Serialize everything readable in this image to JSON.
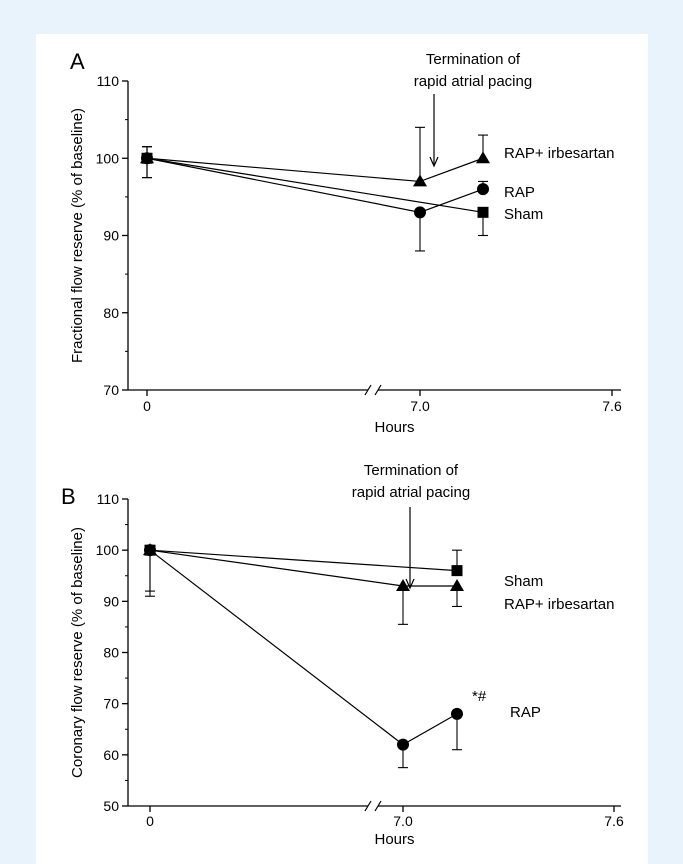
{
  "chart_data": [
    {
      "panel_label": "A",
      "type": "line",
      "ylabel": "Fractional flow reserve (% of baseline)",
      "xlabel": "Hours",
      "ylim": [
        70,
        110
      ],
      "yticks": [
        70,
        80,
        90,
        100,
        110
      ],
      "xticks": [
        "0",
        "7.0",
        "7.6"
      ],
      "x_points": [
        "0",
        "7.0",
        "7.3"
      ],
      "axis_break": true,
      "annotation": {
        "line1": "Termination of",
        "line2": "rapid atrial pacing"
      },
      "series": [
        {
          "name": "RAP+ irbesartan",
          "marker": "triangle",
          "values": [
            100,
            97,
            100
          ],
          "err_up": [
            1.5,
            7,
            3
          ],
          "err_down": [
            2.5,
            0,
            0
          ]
        },
        {
          "name": "RAP",
          "marker": "circle",
          "values": [
            100,
            93,
            96
          ],
          "err_up": [
            1.5,
            0,
            1
          ],
          "err_down": [
            2.5,
            5,
            0
          ]
        },
        {
          "name": "Sham",
          "marker": "square",
          "values": [
            100,
            null,
            93
          ],
          "err_up": [
            1.5,
            0,
            0
          ],
          "err_down": [
            2.5,
            0,
            3
          ]
        }
      ]
    },
    {
      "panel_label": "B",
      "type": "line",
      "ylabel": "Coronary flow reserve (% of baseline)",
      "xlabel": "Hours",
      "ylim": [
        50,
        110
      ],
      "yticks": [
        50,
        60,
        70,
        80,
        90,
        100,
        110
      ],
      "xticks": [
        "0",
        "7.0",
        "7.6"
      ],
      "x_points": [
        "0",
        "7.0",
        "7.3"
      ],
      "axis_break": true,
      "annotation": {
        "line1": "Termination of",
        "line2": "rapid atrial pacing"
      },
      "significance": "*#",
      "series": [
        {
          "name": "Sham",
          "marker": "square",
          "values": [
            100,
            null,
            96
          ],
          "err_up": [
            0,
            0,
            4
          ],
          "err_down": [
            0,
            0,
            0
          ]
        },
        {
          "name": "RAP+ irbesartan",
          "marker": "triangle",
          "values": [
            100,
            93,
            93
          ],
          "err_up": [
            0,
            0,
            0
          ],
          "err_down": [
            8,
            7.5,
            4
          ]
        },
        {
          "name": "RAP",
          "marker": "circle",
          "values": [
            100,
            62,
            68
          ],
          "err_up": [
            0,
            0,
            0
          ],
          "err_down": [
            9,
            4.5,
            7
          ]
        }
      ]
    }
  ]
}
